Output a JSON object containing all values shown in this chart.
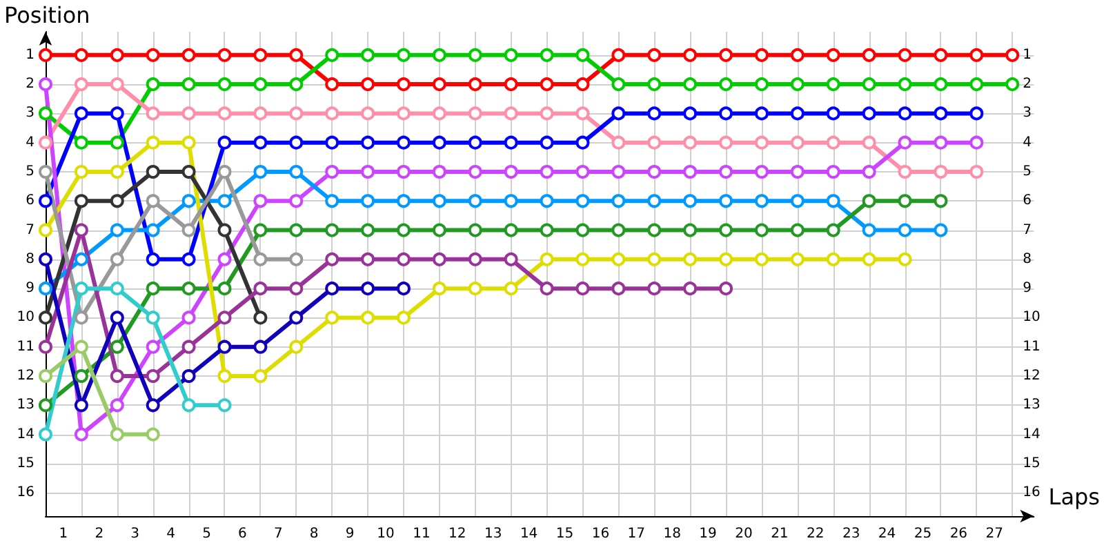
{
  "chart_data": {
    "type": "line",
    "xlabel": "Laps",
    "ylabel": "Position",
    "marker": "circle",
    "line_style": "solid",
    "grid": true,
    "x": [
      0,
      1,
      2,
      3,
      4,
      5,
      6,
      7,
      8,
      9,
      10,
      11,
      12,
      13,
      14,
      15,
      16,
      17,
      18,
      19,
      20,
      21,
      22,
      23,
      24,
      25,
      26,
      27
    ],
    "xlim": [
      0,
      27.6
    ],
    "xticks": [
      {
        "value": 0,
        "label": null
      },
      {
        "value": 0.5,
        "label": "1"
      },
      {
        "value": 1,
        "label": null
      },
      {
        "value": 1.5,
        "label": "2"
      },
      {
        "value": 2,
        "label": null
      },
      {
        "value": 2.5,
        "label": "3"
      },
      {
        "value": 3,
        "label": null
      },
      {
        "value": 3.5,
        "label": "4"
      },
      {
        "value": 4,
        "label": null
      },
      {
        "value": 4.5,
        "label": "5"
      },
      {
        "value": 5,
        "label": null
      },
      {
        "value": 5.5,
        "label": "6"
      },
      {
        "value": 6,
        "label": null
      },
      {
        "value": 6.5,
        "label": "7"
      },
      {
        "value": 7,
        "label": null
      },
      {
        "value": 7.5,
        "label": "8"
      },
      {
        "value": 8,
        "label": null
      },
      {
        "value": 8.5,
        "label": "9"
      },
      {
        "value": 9,
        "label": null
      },
      {
        "value": 9.5,
        "label": "10"
      },
      {
        "value": 10,
        "label": null
      },
      {
        "value": 10.5,
        "label": "11"
      },
      {
        "value": 11,
        "label": null
      },
      {
        "value": 11.5,
        "label": "12"
      },
      {
        "value": 12,
        "label": null
      },
      {
        "value": 12.5,
        "label": "13"
      },
      {
        "value": 13,
        "label": null
      },
      {
        "value": 13.5,
        "label": "14"
      },
      {
        "value": 14,
        "label": null
      },
      {
        "value": 14.5,
        "label": "15"
      },
      {
        "value": 15,
        "label": null
      },
      {
        "value": 15.5,
        "label": "16"
      },
      {
        "value": 16,
        "label": null
      },
      {
        "value": 16.5,
        "label": "17"
      },
      {
        "value": 17,
        "label": null
      },
      {
        "value": 17.5,
        "label": "18"
      },
      {
        "value": 18,
        "label": null
      },
      {
        "value": 18.5,
        "label": "19"
      },
      {
        "value": 19,
        "label": null
      },
      {
        "value": 19.5,
        "label": "20"
      },
      {
        "value": 20,
        "label": null
      },
      {
        "value": 20.5,
        "label": "21"
      },
      {
        "value": 21,
        "label": null
      },
      {
        "value": 21.5,
        "label": "22"
      },
      {
        "value": 22,
        "label": null
      },
      {
        "value": 22.5,
        "label": "23"
      },
      {
        "value": 23,
        "label": null
      },
      {
        "value": 23.5,
        "label": "24"
      },
      {
        "value": 24,
        "label": null
      },
      {
        "value": 24.5,
        "label": "25"
      },
      {
        "value": 25,
        "label": null
      },
      {
        "value": 25.5,
        "label": "26"
      },
      {
        "value": 26,
        "label": null
      },
      {
        "value": 26.5,
        "label": "27"
      },
      {
        "value": 27,
        "label": null
      }
    ],
    "ylim": [
      16.8,
      0.2
    ],
    "yticks": [
      1,
      2,
      3,
      4,
      5,
      6,
      7,
      8,
      9,
      10,
      11,
      12,
      13,
      14,
      15,
      16
    ],
    "y2lim": [
      16.8,
      0.2
    ],
    "y2ticks": [
      1,
      2,
      3,
      4,
      5,
      6,
      7,
      8,
      9,
      10,
      11,
      12,
      13,
      14,
      15,
      16
    ],
    "series": [
      {
        "color": "#ff0000",
        "values": [
          1,
          1,
          1,
          1,
          1,
          1,
          1,
          1,
          2,
          2,
          2,
          2,
          2,
          2,
          2,
          2,
          1,
          1,
          1,
          1,
          1,
          1,
          1,
          1,
          1,
          1,
          1,
          1
        ]
      },
      {
        "color": "#00cc00",
        "values": [
          3,
          4,
          4,
          2,
          2,
          2,
          2,
          2,
          1,
          1,
          1,
          1,
          1,
          1,
          1,
          1,
          2,
          2,
          2,
          2,
          2,
          2,
          2,
          2,
          2,
          2,
          2,
          2
        ]
      },
      {
        "color": "#ff8fa8",
        "values": [
          4,
          2,
          2,
          3,
          3,
          3,
          3,
          3,
          3,
          3,
          3,
          3,
          3,
          3,
          3,
          3,
          4,
          4,
          4,
          4,
          4,
          4,
          4,
          4,
          5,
          5,
          5,
          null
        ]
      },
      {
        "color": "#0000ff",
        "values": [
          6,
          3,
          3,
          8,
          8,
          4,
          4,
          4,
          4,
          4,
          4,
          4,
          4,
          4,
          4,
          4,
          3,
          3,
          3,
          3,
          3,
          3,
          3,
          3,
          3,
          3,
          3,
          null
        ]
      },
      {
        "color": "#cc44ff",
        "values": [
          2,
          14,
          13,
          11,
          10,
          8,
          6,
          6,
          5,
          5,
          5,
          5,
          5,
          5,
          5,
          5,
          5,
          5,
          5,
          5,
          5,
          5,
          5,
          5,
          4,
          4,
          4,
          null
        ]
      },
      {
        "color": "#0099ff",
        "values": [
          9,
          8,
          7,
          7,
          6,
          6,
          5,
          5,
          6,
          6,
          6,
          6,
          6,
          6,
          6,
          6,
          6,
          6,
          6,
          6,
          6,
          6,
          6,
          7,
          7,
          7,
          null,
          null
        ]
      },
      {
        "color": "#229922",
        "values": [
          13,
          12,
          11,
          9,
          9,
          9,
          7,
          7,
          7,
          7,
          7,
          7,
          7,
          7,
          7,
          7,
          7,
          7,
          7,
          7,
          7,
          7,
          7,
          6,
          6,
          6,
          null,
          null
        ]
      },
      {
        "color": "#dddd00",
        "values": [
          7,
          5,
          5,
          4,
          4,
          12,
          12,
          11,
          10,
          10,
          10,
          9,
          9,
          9,
          8,
          8,
          8,
          8,
          8,
          8,
          8,
          8,
          8,
          8,
          8,
          null,
          null,
          null
        ]
      },
      {
        "color": "#333333",
        "values": [
          10,
          6,
          6,
          5,
          5,
          7,
          10,
          null,
          null,
          null,
          null,
          null,
          null,
          null,
          null,
          null,
          null,
          null,
          null,
          null,
          null,
          null,
          null,
          null,
          null,
          null,
          null,
          null
        ]
      },
      {
        "color": "#999999",
        "values": [
          5,
          10,
          8,
          6,
          7,
          5,
          8,
          8,
          null,
          null,
          null,
          null,
          null,
          null,
          null,
          null,
          null,
          null,
          null,
          null,
          null,
          null,
          null,
          null,
          null,
          null,
          null,
          null
        ]
      },
      {
        "color": "#993399",
        "values": [
          11,
          7,
          12,
          12,
          11,
          10,
          9,
          9,
          8,
          8,
          8,
          8,
          8,
          8,
          9,
          9,
          9,
          9,
          9,
          9,
          null,
          null,
          null,
          null,
          null,
          null,
          null,
          null
        ]
      },
      {
        "color": "#1100bb",
        "values": [
          8,
          13,
          10,
          13,
          12,
          11,
          11,
          10,
          9,
          9,
          9,
          null,
          null,
          null,
          null,
          null,
          null,
          null,
          null,
          null,
          null,
          null,
          null,
          null,
          null,
          null,
          null,
          null
        ]
      },
      {
        "color": "#33cccc",
        "values": [
          14,
          9,
          9,
          10,
          13,
          13,
          null,
          null,
          null,
          null,
          null,
          null,
          null,
          null,
          null,
          null,
          null,
          null,
          null,
          null,
          null,
          null,
          null,
          null,
          null,
          null,
          null,
          null
        ]
      },
      {
        "color": "#99cc66",
        "values": [
          12,
          11,
          14,
          14,
          null,
          null,
          null,
          null,
          null,
          null,
          null,
          null,
          null,
          null,
          null,
          null,
          null,
          null,
          null,
          null,
          null,
          null,
          null,
          null,
          null,
          null,
          null,
          null
        ]
      }
    ]
  }
}
